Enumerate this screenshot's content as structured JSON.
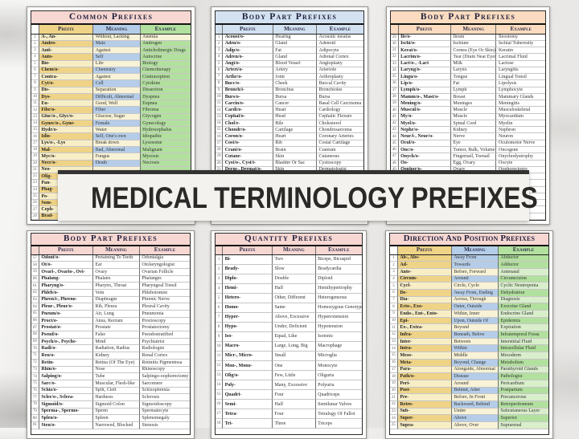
{
  "banner": {
    "text": "MEDICAL TERMINOLOGY PREFIXES"
  },
  "column_headers": [
    "Prefix",
    "Meaning",
    "Example"
  ],
  "panels": [
    {
      "title": "Common Prefixes",
      "rows": [
        [
          "1",
          "A-, An-",
          "Without, Lacking",
          "Anemia"
        ],
        [
          "2",
          "Andro-",
          "Male",
          "Androgen"
        ],
        [
          "3",
          "Anti-",
          "Against",
          "Anticholinergic Drugs"
        ],
        [
          "4",
          "Auto-",
          "Self",
          "Autocrine"
        ],
        [
          "5",
          "Bio-",
          "Life",
          "Biology"
        ],
        [
          "6",
          "Chem/o-",
          "Chemistry",
          "Chemotherapy"
        ],
        [
          "7",
          "Contra-",
          "Against",
          "Contraception"
        ],
        [
          "8",
          "Cyt/o-",
          "Cell",
          "Cytokine"
        ],
        [
          "9",
          "Dis-",
          "Separation",
          "Dissection"
        ],
        [
          "10",
          "Dys-",
          "Difficult, Abnormal",
          "Dyspnea"
        ],
        [
          "11",
          "Eu-",
          "Good, Well",
          "Eupnea"
        ],
        [
          "12",
          "Fibr/o-",
          "Fiber",
          "Fibroma"
        ],
        [
          "13",
          "Gluc/o-, Glyc/o-",
          "Glucose, Sugar",
          "Glycogen"
        ],
        [
          "14",
          "Gynec/o-, Gyne-",
          "Female",
          "Gynecology"
        ],
        [
          "15",
          "Hydr/o-",
          "Water",
          "Hydrocephalus"
        ],
        [
          "16",
          "Idio-",
          "Self, One's own",
          "Idiopathic"
        ],
        [
          "17",
          "Lys/o-, -Lys",
          "Break down",
          "Lysosome"
        ],
        [
          "18",
          "Mal-",
          "Bad, Abnormal",
          "Malignant"
        ],
        [
          "19",
          "Myc/o-",
          "Fungus",
          "Mycosis"
        ],
        [
          "20",
          "Necr/o-",
          "Death",
          "Necrosis"
        ],
        [
          "21",
          "Neo-",
          "",
          ""
        ],
        [
          "22",
          "Olig-",
          "",
          ""
        ],
        [
          "23",
          "Pan-",
          "",
          ""
        ],
        [
          "24",
          "Phag-",
          "",
          ""
        ],
        [
          "25",
          "Po-",
          "",
          ""
        ],
        [
          "26",
          "Som-",
          "",
          ""
        ],
        [
          "27",
          "Ceph-",
          "",
          ""
        ],
        [
          "28",
          "Brad-",
          "",
          ""
        ]
      ]
    },
    {
      "title": "Body Part Prefixes",
      "rows": [
        [
          "1",
          "Acoust/o-",
          "Hearing",
          "Acoustic meatus"
        ],
        [
          "2",
          "Aden/o-",
          "Gland",
          "Adenoid"
        ],
        [
          "3",
          "Adip/o-",
          "Fat",
          "Adipocyte"
        ],
        [
          "4",
          "Adren/o-",
          "Gland",
          "Adrenal Cortex"
        ],
        [
          "5",
          "Angi/o-",
          "Blood Vessel",
          "Angioplasty"
        ],
        [
          "6",
          "Arteri/o-",
          "Artery",
          "Arteriole"
        ],
        [
          "7",
          "Arthr/o-",
          "Joint",
          "Arthroplasty"
        ],
        [
          "8",
          "Bucc/o-",
          "Cheek",
          "Buccal Cavity"
        ],
        [
          "9",
          "Bronch/i-",
          "Bronchus",
          "Bronchioles"
        ],
        [
          "10",
          "Burs/o-",
          "Bursa",
          "Bursa"
        ],
        [
          "11",
          "Carcin/o-",
          "Cancer",
          "Basal Cell Carcinoma"
        ],
        [
          "12",
          "Cardi/o-",
          "Heart",
          "Cardiology"
        ],
        [
          "13",
          "Cephal/o-",
          "Head",
          "Cephalic Flexure"
        ],
        [
          "14",
          "Chol/e-",
          "Bile",
          "Cholesterol"
        ],
        [
          "15",
          "Chondr/o-",
          "Cartilage",
          "Chondrosarcoma"
        ],
        [
          "16",
          "Coron/o-",
          "Heart",
          "Coronary Arteries"
        ],
        [
          "17",
          "Cost/o-",
          "Rib",
          "Costal Cartilage"
        ],
        [
          "18",
          "Crani/o-",
          "Brain",
          "Cranium"
        ],
        [
          "19",
          "Cutane-",
          "Skin",
          "Cutaneous"
        ],
        [
          "20",
          "Cyst/o-, Cyst/i-",
          "Bladder Or Sac",
          "Cystoscopy"
        ],
        [
          "21",
          "Derm-, Dermat/o-",
          "Skin",
          "Dermatologist"
        ],
        [
          "",
          "",
          "",
          ""
        ],
        [
          "",
          "",
          "",
          ""
        ],
        [
          "",
          "",
          "",
          ""
        ],
        [
          "",
          "",
          "",
          ""
        ],
        [
          "",
          "",
          "",
          ""
        ],
        [
          "",
          "",
          "",
          ""
        ],
        [
          "",
          "",
          "",
          ""
        ]
      ]
    },
    {
      "title": "Body Part Prefixes",
      "rows": [
        [
          "29",
          "Ile/o-",
          "Ileum",
          "Ileostomy"
        ],
        [
          "30",
          "Ischi/o-",
          "Ischium",
          "Ischial Tuberosity"
        ],
        [
          "31",
          "Kerat/o-",
          "Cornea (Eye Or Skin)",
          "Keratin"
        ],
        [
          "32",
          "Lacrim/o-",
          "Tear (Drain Near Eyes)",
          "Lacrimal Fluid"
        ],
        [
          "33",
          "Lact/o-, -Lact",
          "Milk",
          "Lactose"
        ],
        [
          "34",
          "Laryng/o-",
          "Larynx",
          "Laryngitis"
        ],
        [
          "35",
          "Lingu/o-",
          "Tongue",
          "Lingual Tonsil"
        ],
        [
          "36",
          "Lip/o-",
          "Fat",
          "Lipolysis"
        ],
        [
          "37",
          "Lymph/o-",
          "Lymph",
          "Lymphocyte"
        ],
        [
          "38",
          "Mamm/o-, Mast/o-",
          "Breast",
          "Mammary Glands"
        ],
        [
          "39",
          "Mening/o-",
          "Meninges",
          "Meningitis"
        ],
        [
          "40",
          "Muscul/o-",
          "Muscle",
          "Musculoskeletal"
        ],
        [
          "41",
          "My/o-",
          "Muscle",
          "Myocardium"
        ],
        [
          "42",
          "Myel/o-",
          "Spinal Cord",
          "Myelin"
        ],
        [
          "43",
          "Nephr/o-",
          "Kidney",
          "Nephron"
        ],
        [
          "44",
          "Neur/i-, Neur/o-",
          "Nerve",
          "Neuron"
        ],
        [
          "45",
          "Ocul/o-",
          "Eye",
          "Oculomotor Nerve"
        ],
        [
          "46",
          "Onc/o-",
          "Tumor, Bulk, Volume",
          "Oncogene"
        ],
        [
          "47",
          "Onych/o-",
          "Fingernail, Toenail",
          "Onychodystrophy"
        ],
        [
          "48",
          "Oo-",
          "Egg, Ovary",
          "Oocyte"
        ],
        [
          "49",
          "Oophor/o-",
          "Ovary",
          "Oophorectomy"
        ],
        [
          "",
          "",
          "",
          ""
        ],
        [
          "",
          "",
          "",
          ""
        ],
        [
          "",
          "",
          "",
          ""
        ],
        [
          "",
          "",
          "",
          ""
        ],
        [
          "",
          "",
          "",
          ""
        ],
        [
          "",
          "",
          "",
          ""
        ],
        [
          "",
          "",
          "",
          ""
        ]
      ]
    },
    {
      "title": "Body Part Prefixes",
      "rows": [
        [
          "57",
          "Odont/o-",
          "Pertaining To Teeth",
          "Odontalgia"
        ],
        [
          "58",
          "Ot/o-",
          "Ear",
          "Otolaryngologist"
        ],
        [
          "59",
          "Ovari-, Ovario-, Ovi-",
          "Ovary",
          "Ovarian Follicle"
        ],
        [
          "60",
          "Phalang-",
          "Phalanx",
          "Phalanges"
        ],
        [
          "61",
          "Pharyng/o-",
          "Pharynx, Throat",
          "Pharyngeal Tonsil"
        ],
        [
          "62",
          "Phleb/o-",
          "Vein",
          "Phlebotomist"
        ],
        [
          "63",
          "Phren/i-, Phreno-",
          "Diaphragm",
          "Phrenic Nerve"
        ],
        [
          "64",
          "Pleur-, Pleur/o-",
          "Rib, Pleura",
          "Pleural Cavity"
        ],
        [
          "65",
          "Pneum/o-",
          "Air, Lung",
          "Pneumonia"
        ],
        [
          "66",
          "Proct/o-",
          "Anus, Rectum",
          "Proctoscopy"
        ],
        [
          "67",
          "Prostat/o-",
          "Prostate",
          "Prostatectomy"
        ],
        [
          "68",
          "Pseud/o-",
          "False",
          "Pseudostratified"
        ],
        [
          "69",
          "Psych/o-, Psyche-",
          "Mind",
          "Psychiatrist"
        ],
        [
          "70",
          "Radi/o-",
          "Radiation, Radius",
          "Radiologist"
        ],
        [
          "71",
          "Ren/o-",
          "Kidney",
          "Renal Cortex"
        ],
        [
          "72",
          "Retin-",
          "Retina (Of The Eye)",
          "Retinitis Pigmentosa"
        ],
        [
          "73",
          "Rhin/o-",
          "Nose",
          "Rhinoscopy"
        ],
        [
          "74",
          "Salping/o-",
          "Tube",
          "Salpingo-oophorectomy"
        ],
        [
          "75",
          "Sarc/o-",
          "Muscular, Flesh-like",
          "Sarcomere"
        ],
        [
          "76",
          "Schiz/o-",
          "Split, Cleft",
          "Schizophrenia"
        ],
        [
          "77",
          "Scler/o-, Sclera-",
          "Hardness",
          "Sclerosis"
        ],
        [
          "78",
          "Sigmoid/o-",
          "Sigmoid Colon",
          "Sigmoidoscopy"
        ],
        [
          "79",
          "Sperma-, Spermo-",
          "Sperm",
          "Spermatocyte"
        ],
        [
          "80",
          "Splen/o-",
          "Spleen",
          "Splenomegaly"
        ],
        [
          "81",
          "Sten/o-",
          "Narrowed, Blocked",
          "Stenosis"
        ]
      ]
    },
    {
      "title": "Quantity Prefixes",
      "rows": [
        [
          "1",
          "Bi-",
          "Two",
          "Biceps, Bicuspid"
        ],
        [
          "2",
          "Brady-",
          "Slow",
          "Bradycardia"
        ],
        [
          "3",
          "Diplo-",
          "Double",
          "Diploid"
        ],
        [
          "4",
          "Hemi-",
          "Half",
          "Hemihypertrophy"
        ],
        [
          "5",
          "Hetero-",
          "Other, Different",
          "Heterogeneous"
        ],
        [
          "6",
          "Homo-",
          "Same",
          "Homozygous Genotype"
        ],
        [
          "7",
          "Hyper-",
          "Above, Excessive",
          "Hyperextension"
        ],
        [
          "8",
          "Hypo-",
          "Under, Deficient",
          "Hypotension"
        ],
        [
          "9",
          "Iso-",
          "Equal, Like",
          "Isotonic"
        ],
        [
          "10",
          "Macro-",
          "Large, Long, Big",
          "Macrophage"
        ],
        [
          "11",
          "Micr-, Micro-",
          "Small",
          "Microglia"
        ],
        [
          "12",
          "Mon-, Mono-",
          "One",
          "Monocyte"
        ],
        [
          "13",
          "Olig/o-",
          "Few, Little",
          "Oliguria"
        ],
        [
          "14",
          "Poly-",
          "Many, Excessive",
          "Polyuria"
        ],
        [
          "15",
          "Quadri-",
          "Four",
          "Quadriceps"
        ],
        [
          "16",
          "Semi-",
          "Half",
          "Semilunar Valves"
        ],
        [
          "17",
          "Tetra-",
          "Four",
          "Tetralogy Of Fallot"
        ],
        [
          "18",
          "Tri-",
          "Three",
          "Triceps"
        ]
      ]
    },
    {
      "title": "Direction And Position Prefixes",
      "rows": [
        [
          "1",
          "Ab-, Abs-",
          "Away From",
          "Abductor"
        ],
        [
          "2",
          "Ad-",
          "Towards",
          "Adductor"
        ],
        [
          "3",
          "Ante-",
          "Before, Forward",
          "Antenatal"
        ],
        [
          "4",
          "Circum-",
          "Around",
          "Circumcision"
        ],
        [
          "5",
          "Cycl-",
          "Circle, Cycle",
          "Cyclic Neutropenia"
        ],
        [
          "6",
          "De-",
          "Away From, Ending",
          "Dehydration"
        ],
        [
          "7",
          "Dia-",
          "Across, Through",
          "Diagnosis"
        ],
        [
          "8",
          "Ecto-, Exo-",
          "Outer, Outside",
          "Exocrine Gland"
        ],
        [
          "9",
          "Endo-, Ent-, Ento-",
          "Within, Inner",
          "Endocrine Gland"
        ],
        [
          "10",
          "Epi-",
          "Upon, Outside Of",
          "Epidermis"
        ],
        [
          "11",
          "Ex-, Extra-",
          "Beyond",
          "Expiration"
        ],
        [
          "12",
          "Infra-",
          "Beneath, Below",
          "Infratemporal Fossa"
        ],
        [
          "13",
          "Inter-",
          "Between",
          "Interstitial Fluid"
        ],
        [
          "14",
          "Intra-",
          "Within",
          "Intracellular Fluid"
        ],
        [
          "15",
          "Meso-",
          "Middle",
          "Mesoderm"
        ],
        [
          "16",
          "Meta-",
          "Beyond, Change",
          "Metabolism"
        ],
        [
          "17",
          "Para-",
          "Alongside, Abnormal",
          "Parathyroid Glands"
        ],
        [
          "18",
          "Path/o-",
          "Disease",
          "Pathologist"
        ],
        [
          "19",
          "Peri-",
          "Around",
          "Pericardium"
        ],
        [
          "20",
          "Post-",
          "Behind, After",
          "Postpartum"
        ],
        [
          "21",
          "Pre-",
          "Before, In Front",
          "Precancerous"
        ],
        [
          "22",
          "Retro-",
          "Backward, Behind",
          "Retroperitoneum"
        ],
        [
          "23",
          "Sub-",
          "Under",
          "Subcutaneous Layer"
        ],
        [
          "24",
          "Super-",
          "Above",
          "Superior"
        ],
        [
          "25",
          "Supra-",
          "Above, Over",
          "Suprarenal"
        ]
      ]
    }
  ]
}
